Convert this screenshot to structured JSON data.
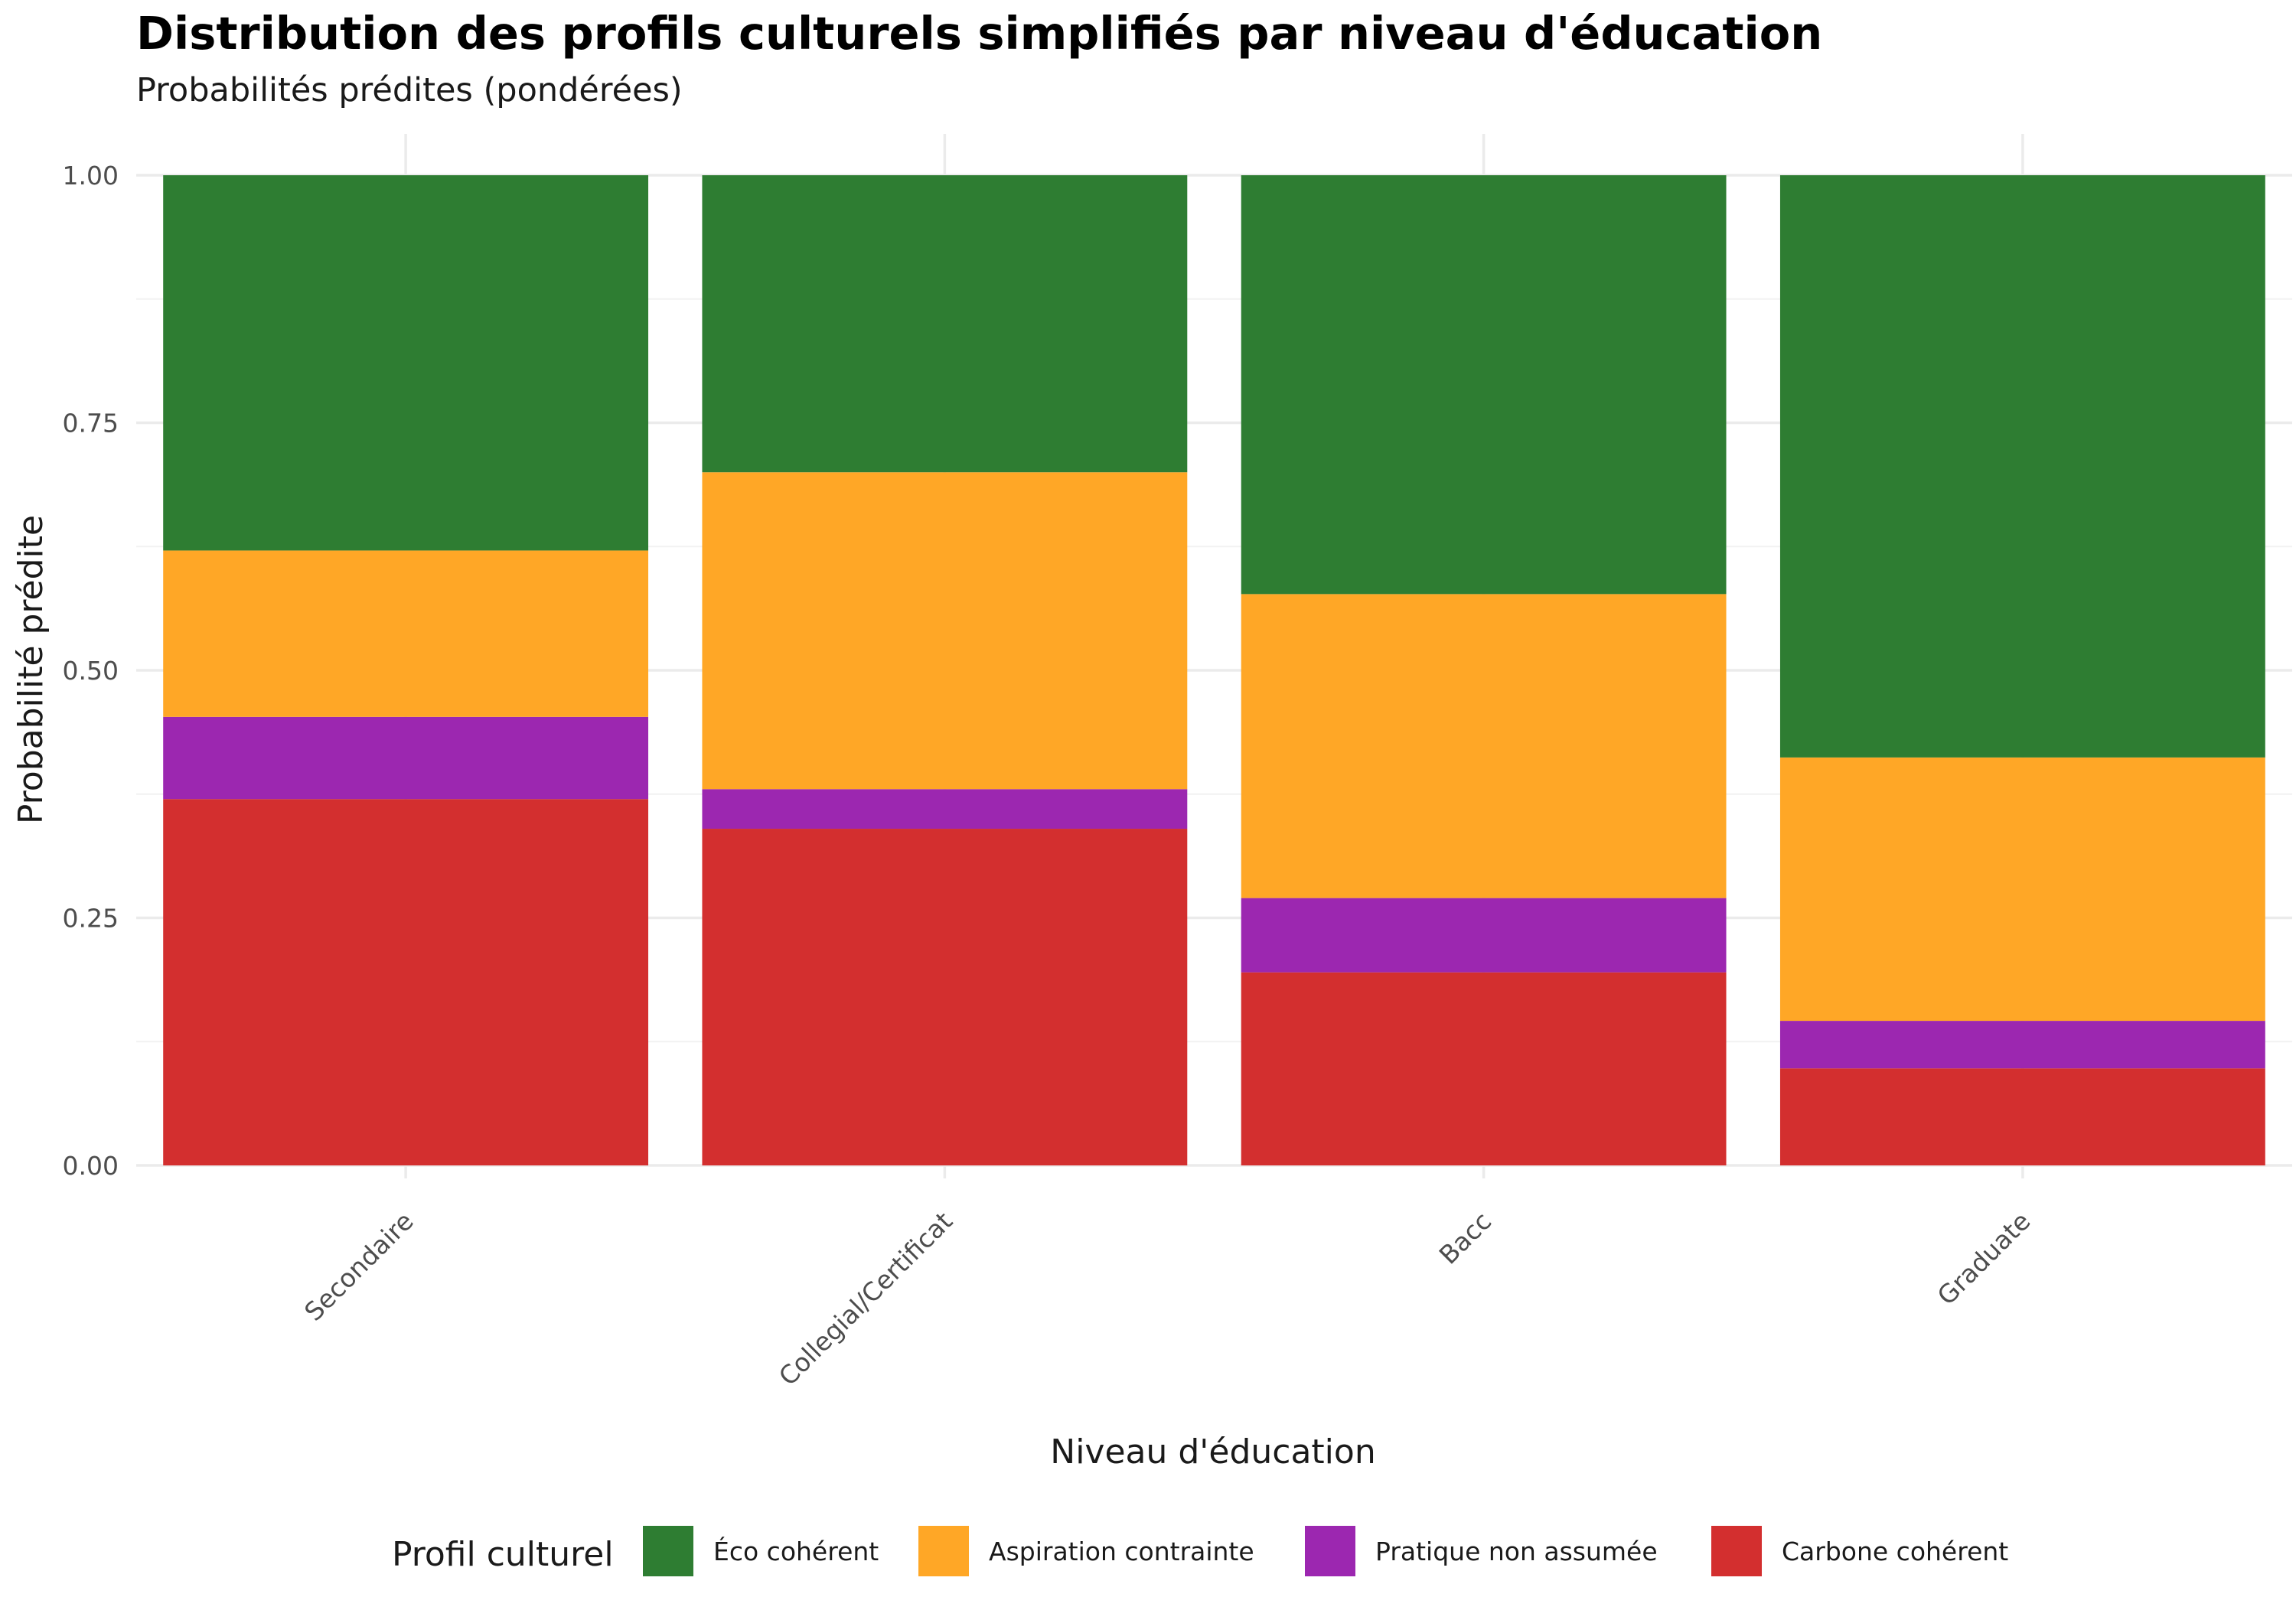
{
  "chart_data": {
    "type": "bar",
    "stacked": true,
    "title": "Distribution des profils culturels simplifiés par niveau d'éducation",
    "subtitle": "Probabilités prédites (pondérées)",
    "xlabel": "Niveau d'éducation",
    "ylabel": "Probabilité prédite",
    "ylim": [
      0,
      1
    ],
    "y_ticks": [
      "0.00",
      "0.25",
      "0.50",
      "0.75",
      "1.00"
    ],
    "y_tick_values": [
      0,
      0.25,
      0.5,
      0.75,
      1.0
    ],
    "categories": [
      "Secondaire",
      "Collegial/Certificat",
      "Bacc",
      "Graduate"
    ],
    "series": [
      {
        "name": "Carbone cohérent",
        "color": "#d32f2f",
        "values": [
          0.37,
          0.34,
          0.195,
          0.098
        ]
      },
      {
        "name": "Pratique non assumée",
        "color": "#9c27b0",
        "values": [
          0.083,
          0.04,
          0.075,
          0.048
        ]
      },
      {
        "name": "Aspiration contrainte",
        "color": "#ffa726",
        "values": [
          0.168,
          0.32,
          0.307,
          0.266
        ]
      },
      {
        "name": "Éco cohérent",
        "color": "#2e7d32",
        "values": [
          0.379,
          0.3,
          0.423,
          0.588
        ]
      }
    ],
    "legend": {
      "title": "Profil culturel",
      "position": "bottom",
      "order": [
        "Éco cohérent",
        "Aspiration contrainte",
        "Pratique non assumée",
        "Carbone cohérent"
      ]
    },
    "grid": true
  }
}
